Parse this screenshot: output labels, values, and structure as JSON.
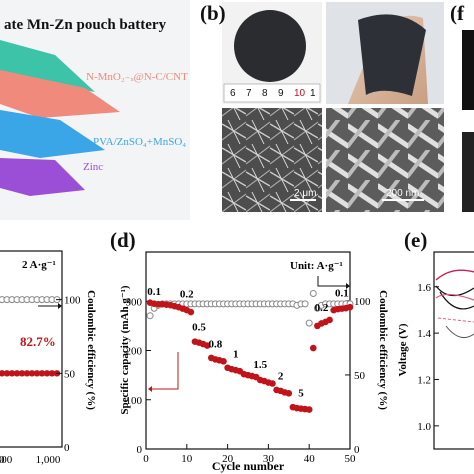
{
  "panel_a": {
    "title": "ate Mn-Zn pouch battery",
    "layers": [
      {
        "label": "N-MnO₂₋ₓ@N-C/CNT",
        "color": "#f08a7d"
      },
      {
        "label": "PVA/ZnSO₄+MnSO₄",
        "color": "#3aa6e8"
      },
      {
        "label": "Zinc",
        "color": "#9b4fd6"
      }
    ],
    "top_layer_color": "#3cc3a8"
  },
  "panel_b": {
    "label": "(b)",
    "ruler_numbers": [
      "6",
      "7",
      "8",
      "9",
      "10",
      "1"
    ],
    "scale_bar_left": "2 μm",
    "scale_bar_right": "200 nm"
  },
  "panel_f": {
    "label": "(f"
  },
  "panel_c": {
    "rate_label": "2 A·g⁻¹",
    "retention": "82.7%",
    "ylabel_right": "Coulombic efficiency (%)",
    "yticks_right": [
      "100",
      "50",
      "0"
    ],
    "xticks": [
      "800",
      "1,000"
    ],
    "x_partial": [
      "0"
    ],
    "ce_value": 100,
    "capacity_relative": 50
  },
  "panel_d": {
    "label": "(d)",
    "unit_label": "Unit: A·g⁻¹",
    "xlabel": "Cycle number",
    "ylabel_left": "Specific capacity (mAh g⁻¹)",
    "ylabel_right": "Coulombic efficiency (%)",
    "yticks_left": [
      "0",
      "100",
      "200",
      "300"
    ],
    "yticks_right": [
      "0",
      "50",
      "100"
    ],
    "xticks": [
      "0",
      "10",
      "20",
      "30",
      "40",
      "50"
    ],
    "rate_labels": [
      "0.1",
      "0.2",
      "0.5",
      "0.8",
      "1",
      "1.5",
      "2",
      "5",
      "0.2",
      "0.1"
    ]
  },
  "panel_e": {
    "label": "(e)",
    "ylabel": "Voltage (V)",
    "yticks": [
      "1.6",
      "1.4",
      "1.2",
      "1.0"
    ]
  },
  "colors": {
    "capacity": "#c0141a",
    "efficiency": "#888888",
    "axis": "#111111"
  },
  "chart_data": [
    {
      "type": "scatter",
      "panel": "d",
      "title": "",
      "xlabel": "Cycle number",
      "ylabel": "Specific capacity (mAh g⁻¹)",
      "y2label": "Coulombic efficiency (%)",
      "xlim": [
        0,
        50
      ],
      "ylim": [
        0,
        400
      ],
      "y2lim": [
        0,
        133
      ],
      "series": [
        {
          "name": "",
          "axis": "left",
          "x": [
            1,
            2,
            3,
            4,
            5,
            6,
            7,
            8,
            9,
            10,
            11,
            12,
            13,
            14,
            15,
            16,
            17,
            18,
            19,
            20,
            21,
            22,
            23,
            24,
            25,
            26,
            27,
            28,
            29,
            30,
            31,
            32,
            33,
            34,
            35,
            36,
            37,
            38,
            39,
            40,
            41,
            42,
            43,
            44,
            45,
            46,
            47,
            48,
            49,
            50
          ],
          "y": [
            297,
            295,
            294,
            294,
            293,
            292,
            290,
            288,
            285,
            282,
            278,
            218,
            216,
            213,
            210,
            185,
            182,
            180,
            178,
            165,
            162,
            160,
            158,
            152,
            150,
            148,
            146,
            140,
            138,
            135,
            133,
            120,
            118,
            115,
            113,
            85,
            83,
            82,
            81,
            80,
            205,
            250,
            255,
            258,
            262,
            282,
            284,
            285,
            286,
            288
          ]
        },
        {
          "name": "",
          "axis": "right",
          "x": [
            1,
            2,
            3,
            4,
            5,
            6,
            7,
            8,
            9,
            10,
            11,
            12,
            13,
            14,
            15,
            16,
            17,
            18,
            19,
            20,
            21,
            22,
            23,
            24,
            25,
            26,
            27,
            28,
            29,
            30,
            31,
            32,
            33,
            34,
            35,
            36,
            37,
            38,
            39,
            40,
            41,
            42,
            43,
            44,
            45,
            46,
            47,
            48,
            49,
            50
          ],
          "y": [
            90,
            95,
            97,
            98,
            98,
            98,
            98,
            98,
            98,
            98,
            98,
            98,
            98,
            98,
            98,
            98,
            98,
            98,
            98,
            98,
            98,
            98,
            98,
            98,
            98,
            98,
            98,
            98,
            98,
            98,
            98,
            98,
            98,
            98,
            98,
            98,
            97,
            98,
            98,
            85,
            105,
            95,
            97,
            98,
            98,
            98,
            98,
            98,
            98,
            98
          ]
        }
      ],
      "rate_labels": [
        "0.1",
        "0.2",
        "0.5",
        "0.8",
        "1",
        "1.5",
        "2",
        "5",
        "0.2",
        "0.1"
      ]
    }
  ]
}
